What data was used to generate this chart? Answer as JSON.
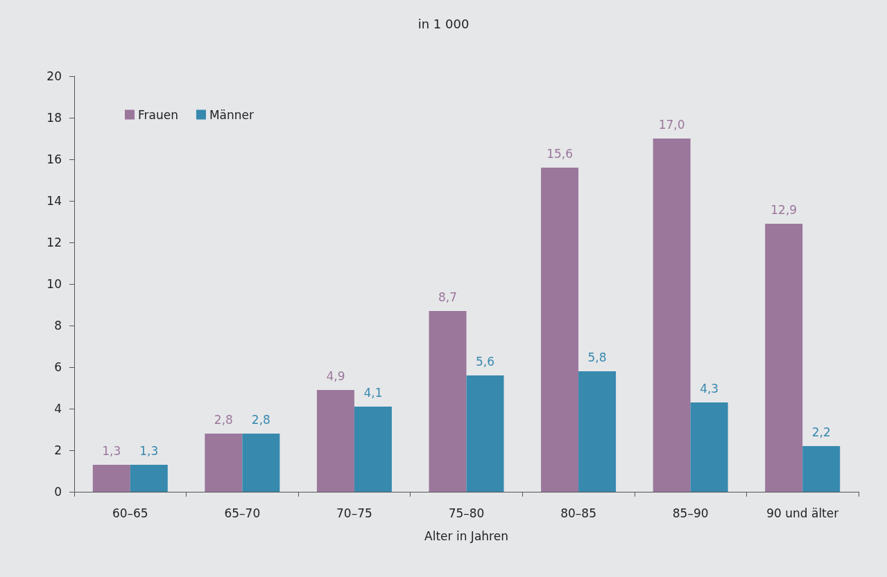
{
  "chart_data": {
    "type": "bar",
    "title": "in 1 000",
    "xlabel": "Alter in Jahren",
    "categories": [
      "60–65",
      "65–70",
      "70–75",
      "75–80",
      "80–85",
      "85–90",
      "90 und älter"
    ],
    "series": [
      {
        "name": "Frauen",
        "color": "#9b779c",
        "values": [
          1.3,
          2.8,
          4.9,
          8.7,
          15.6,
          17.0,
          12.9
        ],
        "value_labels": [
          "1,3",
          "2,8",
          "4,9",
          "8,7",
          "15,6",
          "17,0",
          "12,9"
        ]
      },
      {
        "name": "Männer",
        "color": "#3789ae",
        "values": [
          1.3,
          2.8,
          4.1,
          5.6,
          5.8,
          4.3,
          2.2
        ],
        "value_labels": [
          "1,3",
          "2,8",
          "4,1",
          "5,6",
          "5,8",
          "4,3",
          "2,2"
        ]
      }
    ],
    "ylim": [
      0,
      20
    ],
    "yticks": [
      0,
      2,
      4,
      6,
      8,
      10,
      12,
      14,
      16,
      18,
      20
    ],
    "grid": false,
    "legend": "top left"
  }
}
